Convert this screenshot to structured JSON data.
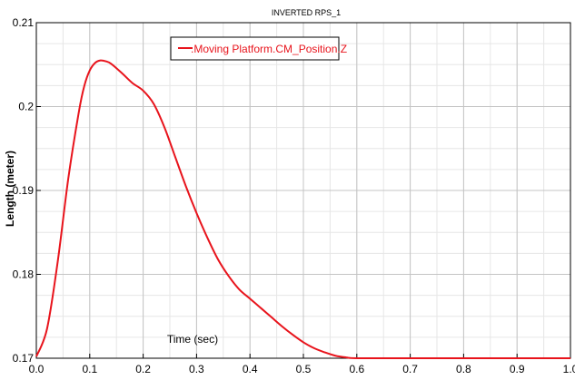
{
  "chart_data": {
    "type": "line",
    "title": "INVERTED RPS_1",
    "xlabel": "Time (sec)",
    "ylabel": "Length (meter)",
    "xlim": [
      0.0,
      1.0
    ],
    "ylim": [
      0.17,
      0.21
    ],
    "x_ticks": [
      "0.0",
      "0.1",
      "0.2",
      "0.3",
      "0.4",
      "0.5",
      "0.6",
      "0.7",
      "0.8",
      "0.9",
      "1.0"
    ],
    "y_ticks": [
      "0.17",
      "0.18",
      "0.19",
      "0.2",
      "0.21"
    ],
    "x_minor_step": 0.05,
    "y_minor_step": 0.0025,
    "grid": true,
    "legend_position": "top-center",
    "series": [
      {
        "name": ".Moving Platform.CM_Position.Z",
        "color": "#e8141c",
        "x": [
          0.0,
          0.02,
          0.04,
          0.06,
          0.08,
          0.09,
          0.1,
          0.11,
          0.12,
          0.13,
          0.14,
          0.16,
          0.18,
          0.2,
          0.22,
          0.24,
          0.26,
          0.28,
          0.3,
          0.32,
          0.34,
          0.36,
          0.38,
          0.4,
          0.42,
          0.44,
          0.46,
          0.48,
          0.5,
          0.52,
          0.54,
          0.56,
          0.58,
          0.6,
          0.7,
          0.8,
          0.9,
          1.0
        ],
        "y": [
          0.1702,
          0.1735,
          0.1815,
          0.1915,
          0.1995,
          0.2025,
          0.2043,
          0.2052,
          0.2055,
          0.2054,
          0.2051,
          0.204,
          0.2028,
          0.2019,
          0.2003,
          0.1975,
          0.194,
          0.1905,
          0.1873,
          0.1844,
          0.1818,
          0.1798,
          0.1782,
          0.1771,
          0.176,
          0.1749,
          0.1738,
          0.1728,
          0.1719,
          0.1712,
          0.1707,
          0.1703,
          0.1701,
          0.17,
          0.17,
          0.17,
          0.17,
          0.17
        ]
      }
    ]
  }
}
